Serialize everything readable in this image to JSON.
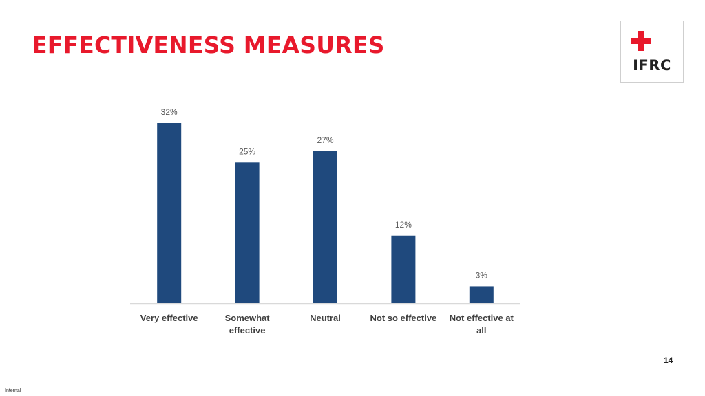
{
  "slide": {
    "title": "EFFECTIVENESS MEASURES",
    "page_number": "14",
    "classification": "Internal",
    "accent_color": "#e8192c"
  },
  "logo": {
    "text": "IFRC",
    "icons": [
      "red-cross-icon",
      "red-crescent-icon"
    ],
    "color": "#e8192c"
  },
  "chart_data": {
    "type": "bar",
    "categories": [
      [
        "Very effective"
      ],
      [
        "Somewhat",
        "effective"
      ],
      [
        "Neutral"
      ],
      [
        "Not so effective"
      ],
      [
        "Not effective at",
        "all"
      ]
    ],
    "values": [
      32,
      25,
      27,
      12,
      3
    ],
    "data_labels": [
      "32%",
      "25%",
      "27%",
      "12%",
      "3%"
    ],
    "unit": "%",
    "bar_color": "#1f497d",
    "ylim": [
      0,
      32
    ],
    "grid": false,
    "legend": "none",
    "title": "",
    "xlabel": "",
    "ylabel": ""
  }
}
